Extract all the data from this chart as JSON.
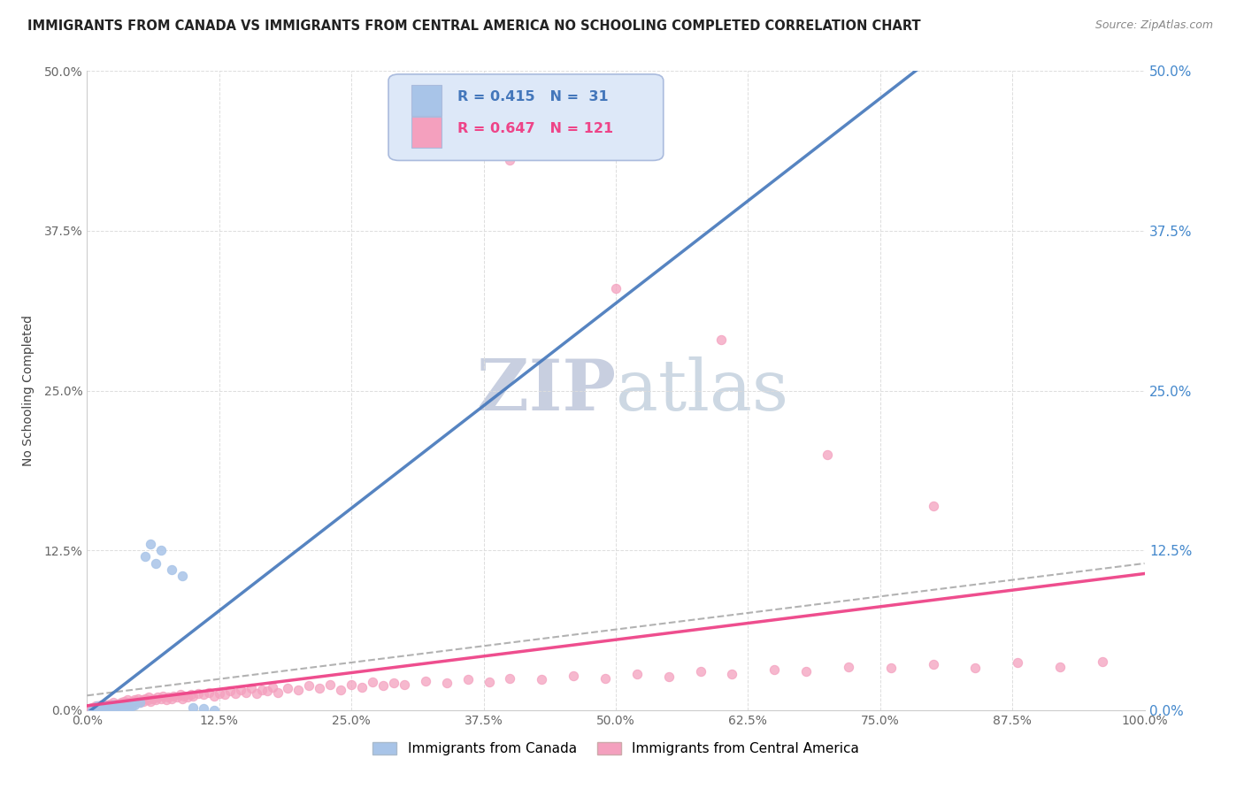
{
  "title": "IMMIGRANTS FROM CANADA VS IMMIGRANTS FROM CENTRAL AMERICA NO SCHOOLING COMPLETED CORRELATION CHART",
  "source": "Source: ZipAtlas.com",
  "ylabel": "No Schooling Completed",
  "x_min": 0.0,
  "x_max": 1.0,
  "y_min": 0.0,
  "y_max": 0.5,
  "x_tick_labels": [
    "0.0%",
    "12.5%",
    "25.0%",
    "37.5%",
    "50.0%",
    "62.5%",
    "75.0%",
    "87.5%",
    "100.0%"
  ],
  "x_tick_vals": [
    0.0,
    0.125,
    0.25,
    0.375,
    0.5,
    0.625,
    0.75,
    0.875,
    1.0
  ],
  "y_tick_labels": [
    "0.0%",
    "12.5%",
    "25.0%",
    "37.5%",
    "50.0%"
  ],
  "y_tick_vals": [
    0.0,
    0.125,
    0.25,
    0.375,
    0.5
  ],
  "canada_R": 0.415,
  "canada_N": 31,
  "central_america_R": 0.647,
  "central_america_N": 121,
  "canada_color": "#a8c4e8",
  "central_america_color": "#f4a0be",
  "trend_canada_color": "#4477bb",
  "trend_central_color": "#ee4488",
  "trend_dash_color": "#aaaaaa",
  "background_color": "#ffffff",
  "watermark_text": "ZIPatlas",
  "watermark_color": "#e0e4ec",
  "title_color": "#222222",
  "axis_color": "#444444",
  "grid_color": "#dddddd",
  "legend_box_facecolor": "#dde8f8",
  "legend_box_edgecolor": "#aabbdd",
  "legend_text_canada_color": "#4477bb",
  "legend_text_central_color": "#ee4488",
  "right_axis_label_color": "#4488cc",
  "canada_label": "Immigrants from Canada",
  "central_label": "Immigrants from Central America",
  "canada_scatter_x": [
    0.005,
    0.008,
    0.01,
    0.01,
    0.012,
    0.015,
    0.015,
    0.018,
    0.02,
    0.02,
    0.022,
    0.025,
    0.025,
    0.028,
    0.03,
    0.032,
    0.035,
    0.038,
    0.04,
    0.042,
    0.045,
    0.05,
    0.055,
    0.06,
    0.065,
    0.07,
    0.08,
    0.09,
    0.1,
    0.11,
    0.12
  ],
  "canada_scatter_y": [
    0.0,
    0.002,
    0.001,
    0.003,
    0.0,
    0.002,
    0.004,
    0.001,
    0.0,
    0.003,
    0.002,
    0.001,
    0.004,
    0.0,
    0.003,
    0.002,
    0.001,
    0.005,
    0.002,
    0.003,
    0.004,
    0.006,
    0.12,
    0.13,
    0.115,
    0.125,
    0.11,
    0.105,
    0.002,
    0.001,
    0.0
  ],
  "central_scatter_x": [
    0.002,
    0.003,
    0.004,
    0.005,
    0.005,
    0.006,
    0.007,
    0.008,
    0.008,
    0.009,
    0.01,
    0.01,
    0.011,
    0.012,
    0.013,
    0.014,
    0.015,
    0.015,
    0.016,
    0.017,
    0.018,
    0.019,
    0.02,
    0.02,
    0.021,
    0.022,
    0.023,
    0.024,
    0.025,
    0.026,
    0.027,
    0.028,
    0.03,
    0.032,
    0.033,
    0.035,
    0.037,
    0.038,
    0.04,
    0.042,
    0.043,
    0.045,
    0.047,
    0.048,
    0.05,
    0.052,
    0.053,
    0.055,
    0.057,
    0.058,
    0.06,
    0.062,
    0.065,
    0.067,
    0.07,
    0.072,
    0.075,
    0.077,
    0.08,
    0.082,
    0.085,
    0.088,
    0.09,
    0.092,
    0.095,
    0.098,
    0.1,
    0.105,
    0.11,
    0.115,
    0.12,
    0.125,
    0.13,
    0.135,
    0.14,
    0.145,
    0.15,
    0.155,
    0.16,
    0.165,
    0.17,
    0.175,
    0.18,
    0.19,
    0.2,
    0.21,
    0.22,
    0.23,
    0.24,
    0.25,
    0.26,
    0.27,
    0.28,
    0.29,
    0.3,
    0.32,
    0.34,
    0.36,
    0.38,
    0.4,
    0.43,
    0.46,
    0.49,
    0.52,
    0.55,
    0.58,
    0.61,
    0.65,
    0.68,
    0.72,
    0.76,
    0.8,
    0.84,
    0.88,
    0.92,
    0.96,
    0.4,
    0.5,
    0.6,
    0.7,
    0.8
  ],
  "central_scatter_y": [
    0.0,
    0.001,
    0.0,
    0.002,
    0.001,
    0.0,
    0.002,
    0.001,
    0.003,
    0.0,
    0.001,
    0.003,
    0.002,
    0.001,
    0.004,
    0.002,
    0.001,
    0.003,
    0.002,
    0.004,
    0.003,
    0.002,
    0.004,
    0.003,
    0.005,
    0.002,
    0.004,
    0.003,
    0.006,
    0.004,
    0.003,
    0.005,
    0.004,
    0.006,
    0.005,
    0.007,
    0.006,
    0.008,
    0.005,
    0.007,
    0.006,
    0.008,
    0.007,
    0.009,
    0.006,
    0.008,
    0.007,
    0.009,
    0.008,
    0.01,
    0.007,
    0.009,
    0.008,
    0.01,
    0.009,
    0.011,
    0.008,
    0.01,
    0.009,
    0.011,
    0.01,
    0.012,
    0.009,
    0.011,
    0.01,
    0.012,
    0.011,
    0.013,
    0.012,
    0.014,
    0.011,
    0.013,
    0.012,
    0.015,
    0.013,
    0.016,
    0.014,
    0.017,
    0.013,
    0.016,
    0.015,
    0.018,
    0.014,
    0.017,
    0.016,
    0.019,
    0.017,
    0.02,
    0.016,
    0.02,
    0.018,
    0.022,
    0.019,
    0.021,
    0.02,
    0.023,
    0.021,
    0.024,
    0.022,
    0.025,
    0.024,
    0.027,
    0.025,
    0.028,
    0.026,
    0.03,
    0.028,
    0.032,
    0.03,
    0.034,
    0.033,
    0.036,
    0.033,
    0.037,
    0.034,
    0.038,
    0.43,
    0.33,
    0.29,
    0.2,
    0.16
  ]
}
